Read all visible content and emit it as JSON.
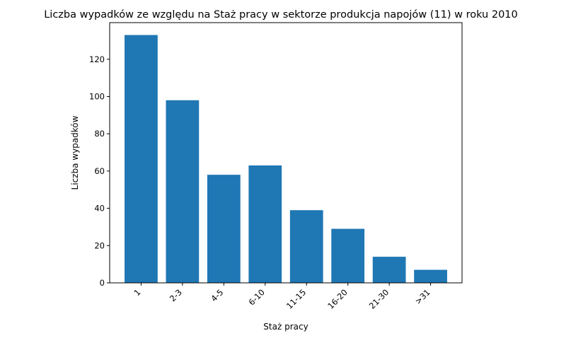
{
  "chart_data": {
    "type": "bar",
    "title": "Liczba wypadków ze względu na Staż pracy w sektorze produkcja napojów  (11)   w roku 2010",
    "xlabel": "Staż pracy",
    "ylabel": "Liczba wypadków",
    "categories": [
      "1",
      "2-3",
      "4-5",
      "6-10",
      "11-15",
      "16-20",
      "21-30",
      ">31"
    ],
    "values": [
      133,
      98,
      58,
      63,
      39,
      29,
      14,
      7
    ],
    "ylim": [
      0,
      139.65
    ],
    "yticks": [
      0,
      20,
      40,
      60,
      80,
      100,
      120
    ],
    "bar_color": "#1f77b4",
    "grid": false,
    "legend": false
  }
}
